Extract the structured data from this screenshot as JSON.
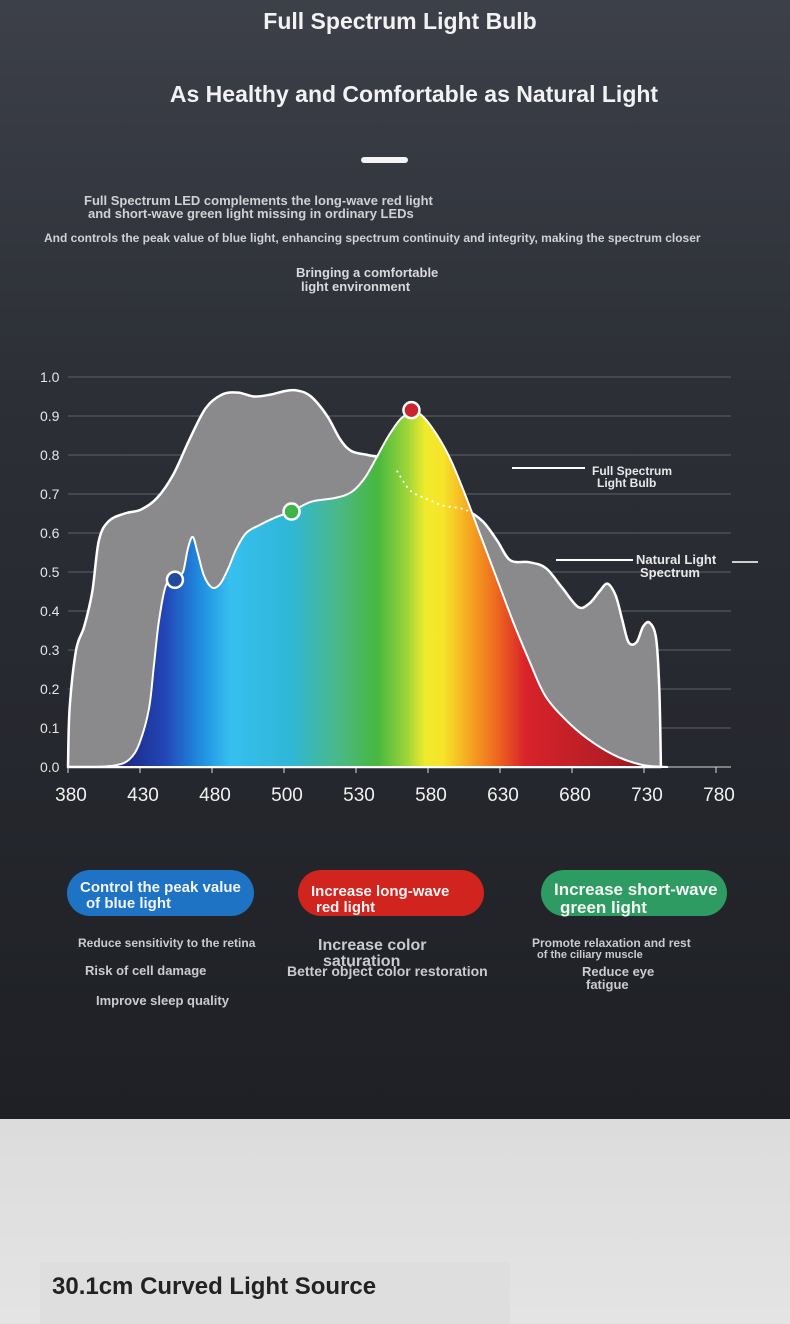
{
  "header": {
    "title": "Full Spectrum Light Bulb",
    "subtitle": "As Healthy and Comfortable as Natural Light"
  },
  "description": {
    "line1": "Full Spectrum LED complements the long-wave red light",
    "line2": "and short-wave green light missing in ordinary LEDs",
    "line3": "And controls the peak value of blue light, enhancing spectrum continuity and integrity, making the spectrum closer",
    "line4": "Bringing a comfortable",
    "line5": "light environment"
  },
  "chart_data": {
    "type": "area",
    "x_ticks": [
      380,
      430,
      480,
      500,
      530,
      580,
      630,
      680,
      730,
      780
    ],
    "y_ticks": [
      "0.0",
      "0.1",
      "0.2",
      "0.3",
      "0.4",
      "0.5",
      "0.6",
      "0.7",
      "0.8",
      "0.9",
      "1.0"
    ],
    "ylim": [
      0,
      1.0
    ],
    "grid": true,
    "series": [
      {
        "name": "Natural Light Spectrum",
        "label_line1": "Natural Light",
        "label_line2": "Spectrum",
        "points": [
          [
            380,
            0.0
          ],
          [
            381,
            0.15
          ],
          [
            385,
            0.3
          ],
          [
            390,
            0.36
          ],
          [
            395,
            0.45
          ],
          [
            399,
            0.58
          ],
          [
            405,
            0.63
          ],
          [
            415,
            0.65
          ],
          [
            425,
            0.66
          ],
          [
            435,
            0.69
          ],
          [
            445,
            0.75
          ],
          [
            455,
            0.84
          ],
          [
            465,
            0.92
          ],
          [
            475,
            0.955
          ],
          [
            485,
            0.96
          ],
          [
            495,
            0.95
          ],
          [
            505,
            0.955
          ],
          [
            515,
            0.965
          ],
          [
            522,
            0.965
          ],
          [
            530,
            0.95
          ],
          [
            540,
            0.9
          ],
          [
            548,
            0.84
          ],
          [
            555,
            0.81
          ],
          [
            565,
            0.8
          ],
          [
            575,
            0.79
          ],
          [
            583,
            0.76
          ],
          [
            591,
            0.71
          ],
          [
            600,
            0.69
          ],
          [
            612,
            0.67
          ],
          [
            625,
            0.66
          ],
          [
            636,
            0.63
          ],
          [
            645,
            0.58
          ],
          [
            653,
            0.53
          ],
          [
            665,
            0.525
          ],
          [
            675,
            0.51
          ],
          [
            685,
            0.46
          ],
          [
            695,
            0.41
          ],
          [
            702,
            0.42
          ],
          [
            708,
            0.45
          ],
          [
            713,
            0.47
          ],
          [
            718,
            0.44
          ],
          [
            722,
            0.38
          ],
          [
            726,
            0.32
          ],
          [
            731,
            0.32
          ],
          [
            735,
            0.36
          ],
          [
            739,
            0.37
          ],
          [
            743,
            0.33
          ],
          [
            745,
            0.2
          ],
          [
            746,
            0.0
          ]
        ]
      },
      {
        "name": "Full Spectrum Light Bulb",
        "label_line1": "Full Spectrum",
        "label_line2": "Light Bulb",
        "points": [
          [
            398,
            0.0
          ],
          [
            410,
            0.005
          ],
          [
            418,
            0.02
          ],
          [
            424,
            0.06
          ],
          [
            430,
            0.15
          ],
          [
            433,
            0.26
          ],
          [
            436,
            0.37
          ],
          [
            440,
            0.46
          ],
          [
            444,
            0.48
          ],
          [
            447,
            0.49
          ],
          [
            451,
            0.5
          ],
          [
            454,
            0.56
          ],
          [
            457,
            0.59
          ],
          [
            460,
            0.55
          ],
          [
            464,
            0.49
          ],
          [
            469,
            0.46
          ],
          [
            474,
            0.47
          ],
          [
            479,
            0.51
          ],
          [
            484,
            0.56
          ],
          [
            490,
            0.6
          ],
          [
            498,
            0.62
          ],
          [
            508,
            0.64
          ],
          [
            518,
            0.655
          ],
          [
            530,
            0.68
          ],
          [
            545,
            0.69
          ],
          [
            555,
            0.705
          ],
          [
            563,
            0.74
          ],
          [
            570,
            0.79
          ],
          [
            578,
            0.85
          ],
          [
            586,
            0.895
          ],
          [
            594,
            0.91
          ],
          [
            600,
            0.895
          ],
          [
            608,
            0.85
          ],
          [
            616,
            0.79
          ],
          [
            625,
            0.7
          ],
          [
            635,
            0.59
          ],
          [
            645,
            0.48
          ],
          [
            655,
            0.37
          ],
          [
            665,
            0.27
          ],
          [
            675,
            0.18
          ],
          [
            690,
            0.11
          ],
          [
            705,
            0.06
          ],
          [
            720,
            0.025
          ],
          [
            735,
            0.005
          ],
          [
            750,
            0.0
          ]
        ]
      }
    ],
    "markers": [
      {
        "x": 446,
        "y": 0.48,
        "color": "#1f4a9e"
      },
      {
        "x": 518,
        "y": 0.655,
        "color": "#3db34a"
      },
      {
        "x": 592,
        "y": 0.915,
        "color": "#c8262c"
      }
    ]
  },
  "benefits": [
    {
      "title_line1": "Control the peak value",
      "title_line2": "of blue light",
      "color": "#1e73c4",
      "items": [
        "Reduce sensitivity to the retina",
        "Risk of cell damage",
        "Improve sleep quality"
      ]
    },
    {
      "title_line1": "Increase long-wave",
      "title_line2": "red light",
      "color": "#d1241f",
      "items": [
        "Increase color",
        "saturation",
        "Better object color restoration"
      ]
    },
    {
      "title_line1": "Increase short-wave",
      "title_line2": "green light",
      "color": "#2e9c62",
      "items": [
        "Promote relaxation and rest",
        "of the ciliary muscle",
        "Reduce eye",
        "fatigue"
      ]
    }
  ],
  "footer": {
    "heading": "30.1cm Curved Light Source"
  }
}
